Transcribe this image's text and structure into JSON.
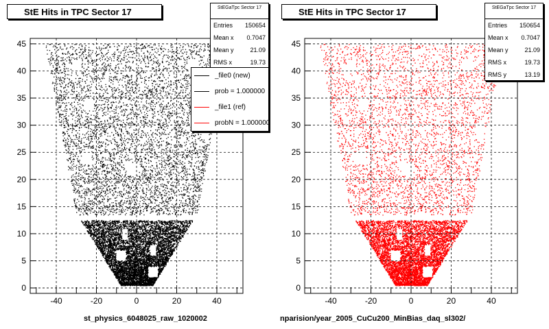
{
  "chart_data": [
    {
      "type": "scatter",
      "title": "StE Hits in TPC Sector 17",
      "xlim": [
        -53,
        53
      ],
      "ylim": [
        -1,
        46
      ],
      "xticks": [
        -40,
        -20,
        0,
        20,
        40
      ],
      "yticks": [
        0,
        5,
        10,
        15,
        20,
        25,
        30,
        35,
        40,
        45
      ],
      "grid": true,
      "color": "#000000",
      "stats": {
        "title": "StEGaTpc Sector 17",
        "entries_label": "Entries",
        "entries": "150654",
        "mean_x_label": "Mean x",
        "mean_x": "0.7047",
        "mean_y_label": "Mean y",
        "mean_y": "21.09",
        "rms_x_label": "RMS x",
        "rms_x": "19.73"
      },
      "legend": [
        {
          "label": "_file0 (new)",
          "color": "#000000"
        },
        {
          "label": "prob = 1.000000",
          "color": "#000000"
        },
        {
          "label": "_file1 (ref)",
          "color": "#ff0000"
        },
        {
          "label": "probN = 1.000000",
          "color": "#ff0000"
        }
      ],
      "footer": "st_physics_6048025_raw_1020002"
    },
    {
      "type": "scatter",
      "title": "StE Hits in TPC Sector 17",
      "xlim": [
        -53,
        53
      ],
      "ylim": [
        -1,
        46
      ],
      "xticks": [
        -40,
        -20,
        0,
        20,
        40
      ],
      "yticks": [
        0,
        5,
        10,
        15,
        20,
        25,
        30,
        35,
        40,
        45
      ],
      "grid": true,
      "color": "#ff0000",
      "stats": {
        "title": "StEGaTpc Sector 17",
        "entries_label": "Entries",
        "entries": "150654",
        "mean_x_label": "Mean x",
        "mean_x": "0.7047",
        "mean_y_label": "Mean y",
        "mean_y": "21.09",
        "rms_x_label": "RMS x",
        "rms_x": "19.73",
        "rms_y_label": "RMS y",
        "rms_y": "13.19"
      },
      "footer": "nparision/year_2005_CuCu200_MinBias_daq_sl302/"
    }
  ]
}
